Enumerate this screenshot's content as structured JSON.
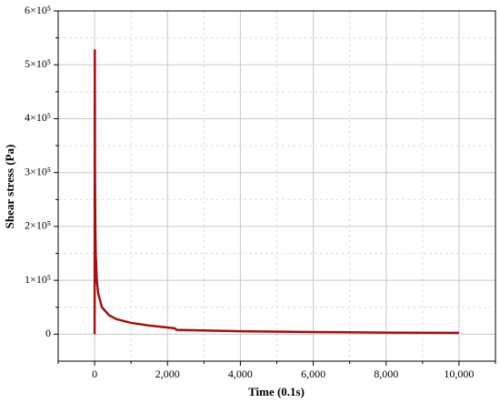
{
  "chart_data": {
    "type": "line",
    "xlabel": "Time (0.1s)",
    "ylabel": "Shear stress (Pa)",
    "x": [
      0,
      5,
      10,
      20,
      30,
      60,
      100,
      200,
      400,
      600,
      1000,
      1500,
      2200,
      2250,
      3000,
      4000,
      6000,
      8000,
      10000
    ],
    "series": [
      {
        "name": "Shear stress",
        "color": "#a50f0f",
        "values": [
          0,
          527000,
          300000,
          200000,
          150000,
          100000,
          75000,
          50000,
          35000,
          28000,
          21000,
          16000,
          11000,
          8000,
          7000,
          5500,
          4000,
          3000,
          2500
        ]
      }
    ],
    "xlim": [
      -1000,
      11000
    ],
    "xticks": [
      0,
      {
        "value": 2000,
        "label": "2,000"
      },
      {
        "value": 4000,
        "label": "4,000"
      },
      {
        "value": 6000,
        "label": "6,000"
      },
      {
        "value": 8000,
        "label": "8,000"
      },
      {
        "value": 10000,
        "label": "10,000"
      }
    ],
    "xminor": [
      -1000,
      1000,
      3000,
      5000,
      7000,
      9000,
      11000
    ],
    "ylim": [
      -50000,
      600000
    ],
    "yticks": [
      0,
      {
        "value": 100000,
        "label": "1×10⁵"
      },
      {
        "value": 200000,
        "label": "2×10⁵"
      },
      {
        "value": 300000,
        "label": "3×10⁵"
      },
      {
        "value": 400000,
        "label": "4×10⁵"
      },
      {
        "value": 500000,
        "label": "5×10⁵"
      },
      {
        "value": 600000,
        "label": "6×10⁵"
      }
    ],
    "yminor": [
      50000,
      150000,
      250000,
      350000,
      450000,
      550000
    ],
    "grid": true
  }
}
